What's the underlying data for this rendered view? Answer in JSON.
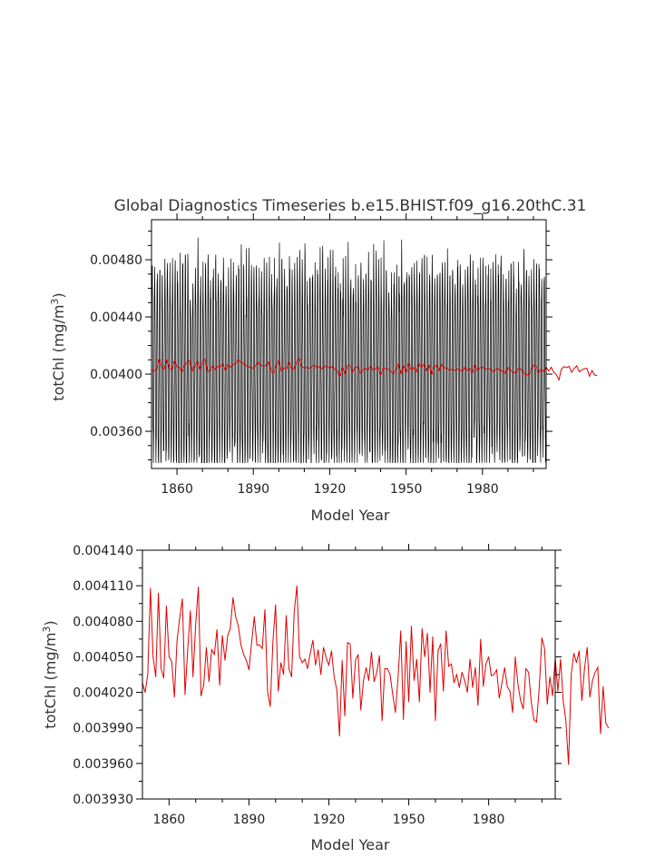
{
  "chart_data": [
    {
      "type": "line",
      "title": "Global Diagnostics Timeseries b.e15.BHIST.f09_g16.20thC.31",
      "xlabel": "Model Year",
      "ylabel_main": "totChl (mg/m",
      "ylabel_sup": "3",
      "ylabel_tail": ")",
      "xlim": [
        1850,
        2005
      ],
      "ylim": [
        0.00334,
        0.00508
      ],
      "x_ticks": [
        1860,
        1890,
        1920,
        1950,
        1980
      ],
      "y_ticks": [
        "0.00360",
        "0.00400",
        "0.00440",
        "0.00480"
      ],
      "y_tick_values": [
        0.0036,
        0.004,
        0.0044,
        0.0048
      ],
      "series": [
        {
          "color": "#000000",
          "description_values": "monthly",
          "style": "monthly"
        },
        {
          "color": "#e00000",
          "style": "annual"
        }
      ],
      "monthly_range": [
        0.00338,
        0.00504
      ]
    },
    {
      "type": "line",
      "title": "",
      "xlabel": "Model Year",
      "ylabel_main": "totChl (mg/m",
      "ylabel_sup": "3",
      "ylabel_tail": ")",
      "xlim": [
        1850,
        2005
      ],
      "ylim": [
        0.00393,
        0.00414
      ],
      "x_ticks": [
        1860,
        1890,
        1920,
        1950,
        1980
      ],
      "y_ticks": [
        "0.003930",
        "0.003960",
        "0.003990",
        "0.004020",
        "0.004050",
        "0.004080",
        "0.004110",
        "0.004140"
      ],
      "y_tick_values": [
        0.00393,
        0.00396,
        0.00399,
        0.00402,
        0.00405,
        0.00408,
        0.00411,
        0.00414
      ],
      "series": [
        {
          "color": "#e00000",
          "x_start": 1850,
          "values": [
            0.004028,
            0.00402,
            0.004035,
            0.004108,
            0.00405,
            0.004033,
            0.004104,
            0.00404,
            0.004032,
            0.004093,
            0.00405,
            0.004046,
            0.004016,
            0.004064,
            0.004083,
            0.004099,
            0.004018,
            0.004056,
            0.004089,
            0.004033,
            0.004078,
            0.004109,
            0.004017,
            0.004026,
            0.004058,
            0.004029,
            0.004056,
            0.004052,
            0.004073,
            0.004026,
            0.004068,
            0.004047,
            0.004068,
            0.004074,
            0.0041,
            0.004084,
            0.004076,
            0.00406,
            0.004052,
            0.004047,
            0.004039,
            0.004062,
            0.004084,
            0.00406,
            0.00406,
            0.004057,
            0.00409,
            0.00402,
            0.004008,
            0.004063,
            0.004094,
            0.004021,
            0.004045,
            0.004035,
            0.004085,
            0.00404,
            0.004033,
            0.004088,
            0.00411,
            0.00405,
            0.004045,
            0.004048,
            0.00404,
            0.004053,
            0.004064,
            0.004043,
            0.004056,
            0.004035,
            0.004058,
            0.004049,
            0.004043,
            0.004055,
            0.004033,
            0.004022,
            0.003983,
            0.004047,
            0.004,
            0.004062,
            0.004061,
            0.004015,
            0.004047,
            0.004052,
            0.004005,
            0.00403,
            0.004041,
            0.00403,
            0.004054,
            0.004029,
            0.004037,
            0.004051,
            0.003996,
            0.00404,
            0.00404,
            0.004035,
            0.004018,
            0.004003,
            0.004033,
            0.004072,
            0.003997,
            0.004063,
            0.004012,
            0.004076,
            0.00403,
            0.004048,
            0.004012,
            0.004074,
            0.00405,
            0.00407,
            0.00402,
            0.004067,
            0.003996,
            0.004055,
            0.004061,
            0.004021,
            0.004072,
            0.004042,
            0.004044,
            0.004028,
            0.004035,
            0.004024,
            0.004037,
            0.00403,
            0.00402,
            0.004048,
            0.004024,
            0.004041,
            0.004009,
            0.004065,
            0.004025,
            0.004044,
            0.00405,
            0.004034,
            0.004035,
            0.004039,
            0.004015,
            0.004028,
            0.004041,
            0.004025,
            0.004021,
            0.004003,
            0.00405,
            0.004027,
            0.004013,
            0.004006,
            0.00404,
            0.004037,
            0.004012,
            0.003997,
            0.003995,
            0.004024,
            0.004066,
            0.004057,
            0.00401,
            0.004033,
            0.004017,
            0.004049,
            0.004021,
            0.004048,
            0.004013,
            0.003996,
            0.003959,
            0.004035,
            0.004053,
            0.004045,
            0.004055,
            0.004013,
            0.00404,
            0.004058,
            0.004016,
            0.00403,
            0.004037,
            0.004041,
            0.003985,
            0.004025,
            0.003994,
            0.00399
          ]
        }
      ]
    }
  ]
}
